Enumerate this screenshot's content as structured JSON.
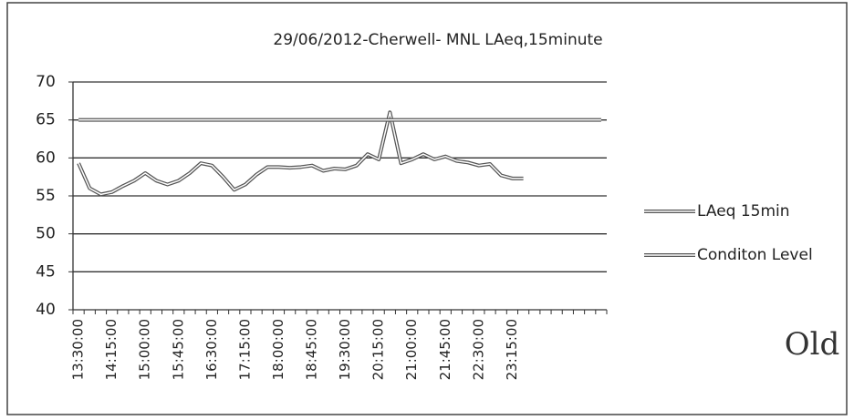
{
  "chart_data": {
    "type": "line",
    "title": "29/06/2012-Cherwell- MNL LAeq,15minute",
    "annotation": "Old",
    "categories": [
      "13:30:00",
      null,
      null,
      "14:15:00",
      null,
      null,
      "15:00:00",
      null,
      null,
      "15:45:00",
      null,
      null,
      "16:30:00",
      null,
      null,
      "17:15:00",
      null,
      null,
      "18:00:00",
      null,
      null,
      "18:45:00",
      null,
      null,
      "19:30:00",
      null,
      null,
      "20:15:00",
      null,
      null,
      "21:00:00",
      null,
      null,
      "21:45:00",
      null,
      null,
      "22:30:00",
      null,
      null,
      "23:15:00",
      null,
      null,
      null,
      null,
      null,
      null,
      null,
      null
    ],
    "series": [
      {
        "name": "LAeq 15min",
        "color": "#555555",
        "values": [
          59.3,
          56,
          55.2,
          55.5,
          56.3,
          57,
          58,
          57,
          56.5,
          57,
          58,
          59.3,
          59,
          57.5,
          55.8,
          56.5,
          57.8,
          58.8,
          58.8,
          58.7,
          58.8,
          59,
          58.3,
          58.6,
          58.5,
          59,
          60.5,
          59.8,
          66,
          59.3,
          59.8,
          60.5,
          59.8,
          60.2,
          59.6,
          59.4,
          59,
          59.2,
          57.7,
          57.3,
          57.3,
          null,
          null,
          null,
          null,
          null,
          null,
          null
        ]
      },
      {
        "name": "Conditon Level",
        "color": "#555555",
        "values": [
          65,
          65,
          65,
          65,
          65,
          65,
          65,
          65,
          65,
          65,
          65,
          65,
          65,
          65,
          65,
          65,
          65,
          65,
          65,
          65,
          65,
          65,
          65,
          65,
          65,
          65,
          65,
          65,
          65,
          65,
          65,
          65,
          65,
          65,
          65,
          65,
          65,
          65,
          65,
          65,
          65,
          65,
          65,
          65,
          65,
          65,
          65,
          65
        ]
      }
    ],
    "ylim": [
      40,
      70
    ],
    "yticks": [
      40,
      45,
      50,
      55,
      60,
      65,
      70
    ],
    "grid": true,
    "legend": "right"
  }
}
